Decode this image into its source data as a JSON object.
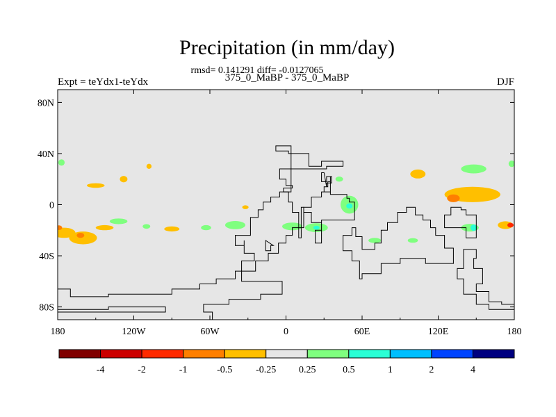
{
  "header": {
    "title": "Precipitation (in mm/day)",
    "stats": "rmsd= 0.141291 diff= -0.0127065",
    "case": "375_0_MaBP - 375_0_MaBP",
    "left_label": "Expt = teYdx1-teYdx",
    "right_label": "DJF"
  },
  "chart_data": {
    "type": "heatmap",
    "title": "Precipitation (in mm/day)",
    "subtitle": "375_0_MaBP - 375_0_MaBP",
    "variable": "precipitation difference",
    "units": "mm/day",
    "season": "DJF",
    "xlabel": "",
    "ylabel": "",
    "xlim": [
      -180,
      180
    ],
    "ylim": [
      -90,
      90
    ],
    "x_ticks": [
      {
        "value": -180,
        "label": "180"
      },
      {
        "value": -120,
        "label": "120W"
      },
      {
        "value": -60,
        "label": "60W"
      },
      {
        "value": 0,
        "label": "0"
      },
      {
        "value": 60,
        "label": "60E"
      },
      {
        "value": 120,
        "label": "120E"
      },
      {
        "value": 180,
        "label": "180"
      }
    ],
    "y_ticks": [
      {
        "value": 80,
        "label": "80N"
      },
      {
        "value": 40,
        "label": "40N"
      },
      {
        "value": 0,
        "label": "0"
      },
      {
        "value": -40,
        "label": "40S"
      },
      {
        "value": -80,
        "label": "80S"
      }
    ],
    "background_color": "#e6e6e6",
    "colorbar": {
      "levels": [
        "-4",
        "-2",
        "-1",
        "-0.5",
        "-0.25",
        "0.25",
        "0.5",
        "1",
        "2",
        "4"
      ],
      "colors": [
        "#800000",
        "#cc0000",
        "#ff2a00",
        "#ff7f00",
        "#ffbf00",
        "#e6e6e6",
        "#7fff7f",
        "#2affd5",
        "#00bfff",
        "#0044ff",
        "#000080"
      ]
    },
    "regions": [
      {
        "name": "South Pacific west",
        "lon": -175,
        "lat": -22,
        "rx": 9,
        "ry": 4,
        "color": "#ffbf00"
      },
      {
        "name": "South Pacific west core",
        "lon": -179,
        "lat": -18,
        "rx": 2.5,
        "ry": 1.8,
        "color": "#ff7f00"
      },
      {
        "name": "South Pacific",
        "lon": -160,
        "lat": -26,
        "rx": 11,
        "ry": 5,
        "color": "#ffbf00"
      },
      {
        "name": "South Pacific core",
        "lon": -162,
        "lat": -24,
        "rx": 3,
        "ry": 2,
        "color": "#ff7f00"
      },
      {
        "name": "South Pacific east",
        "lon": -143,
        "lat": -18,
        "rx": 7,
        "ry": 2,
        "color": "#ffbf00"
      },
      {
        "name": "South Pacific green",
        "lon": -132,
        "lat": -13,
        "rx": 7,
        "ry": 2.2,
        "color": "#7fff7f"
      },
      {
        "name": "South Pacific green 2",
        "lon": -110,
        "lat": -17,
        "rx": 3,
        "ry": 1.8,
        "color": "#7fff7f"
      },
      {
        "name": "South Pacific orange",
        "lon": -90,
        "lat": -19,
        "rx": 6,
        "ry": 2,
        "color": "#ffbf00"
      },
      {
        "name": "East Pacific green",
        "lon": -63,
        "lat": -18,
        "rx": 4,
        "ry": 2,
        "color": "#7fff7f"
      },
      {
        "name": "South America west",
        "lon": -40,
        "lat": -16,
        "rx": 8,
        "ry": 3.2,
        "color": "#7fff7f"
      },
      {
        "name": "Central Pacific 10N",
        "lon": -150,
        "lat": 15,
        "rx": 7,
        "ry": 1.8,
        "color": "#ffbf00"
      },
      {
        "name": "Central Pacific 20N",
        "lon": -128,
        "lat": 20,
        "rx": 3,
        "ry": 2.5,
        "color": "#ffbf00"
      },
      {
        "name": "North Pacific 30N",
        "lon": -108,
        "lat": 30,
        "rx": 2,
        "ry": 2,
        "color": "#ffbf00"
      },
      {
        "name": "Far west 30N",
        "lon": -177,
        "lat": 33,
        "rx": 2.5,
        "ry": 2.5,
        "color": "#7fff7f"
      },
      {
        "name": "Atlantic small",
        "lon": -32,
        "lat": -2,
        "rx": 2.5,
        "ry": 1.5,
        "color": "#ffbf00"
      },
      {
        "name": "Atlantic green 1",
        "lon": 5,
        "lat": -17,
        "rx": 8,
        "ry": 3,
        "color": "#7fff7f"
      },
      {
        "name": "Africa green",
        "lon": 24,
        "lat": -18,
        "rx": 9,
        "ry": 3.5,
        "color": "#7fff7f"
      },
      {
        "name": "Africa cyan",
        "lon": 24,
        "lat": -18,
        "rx": 2.5,
        "ry": 1.5,
        "color": "#2affd5"
      },
      {
        "name": "Arabian Sea",
        "lon": 50,
        "lat": 0,
        "rx": 7,
        "ry": 7,
        "color": "#7fff7f"
      },
      {
        "name": "Arabian Sea core",
        "lon": 50,
        "lat": -1,
        "rx": 2.5,
        "ry": 2,
        "color": "#2affd5"
      },
      {
        "name": "Indian Ocean 20N",
        "lon": 42,
        "lat": 20,
        "rx": 3,
        "ry": 2,
        "color": "#7fff7f"
      },
      {
        "name": "NW Pacific green",
        "lon": 148,
        "lat": 28,
        "rx": 10,
        "ry": 3.5,
        "color": "#7fff7f"
      },
      {
        "name": "NW Pacific orange",
        "lon": 104,
        "lat": 24,
        "rx": 6,
        "ry": 3.5,
        "color": "#ffbf00"
      },
      {
        "name": "West Pacific orange",
        "lon": 147,
        "lat": 8,
        "rx": 22,
        "ry": 6,
        "color": "#ffbf00"
      },
      {
        "name": "West Pacific core",
        "lon": 132,
        "lat": 5,
        "rx": 5,
        "ry": 3,
        "color": "#ff7f00"
      },
      {
        "name": "SW Pacific green",
        "lon": 145,
        "lat": -18,
        "rx": 7,
        "ry": 3,
        "color": "#7fff7f"
      },
      {
        "name": "SW Pacific cyan",
        "lon": 148,
        "lat": -18,
        "rx": 2.5,
        "ry": 2.5,
        "color": "#2affd5"
      },
      {
        "name": "SW Pacific orange",
        "lon": 173,
        "lat": -16,
        "rx": 6,
        "ry": 3,
        "color": "#ffbf00"
      },
      {
        "name": "SW Pacific red",
        "lon": 177,
        "lat": -16,
        "rx": 2.5,
        "ry": 1.8,
        "color": "#ff2a00"
      },
      {
        "name": "Indian Ocean green",
        "lon": 70,
        "lat": -28,
        "rx": 5,
        "ry": 2,
        "color": "#7fff7f"
      },
      {
        "name": "Indian Ocean green 2",
        "lon": 100,
        "lat": -28,
        "rx": 4,
        "ry": 1.8,
        "color": "#7fff7f"
      },
      {
        "name": "NE Pacific green",
        "lon": 178,
        "lat": 32,
        "rx": 2.5,
        "ry": 2.5,
        "color": "#7fff7f"
      }
    ],
    "continents": [
      [
        [
          -33,
          -28
        ],
        [
          -33,
          -32
        ],
        [
          -40,
          -32
        ],
        [
          -40,
          -24
        ],
        [
          -28,
          -24
        ],
        [
          -28,
          -10
        ],
        [
          -22,
          -10
        ],
        [
          -22,
          -4
        ],
        [
          -18,
          -4
        ],
        [
          -18,
          2
        ],
        [
          -12,
          2
        ],
        [
          -12,
          6
        ],
        [
          -5,
          6
        ],
        [
          -5,
          10
        ],
        [
          2,
          10
        ],
        [
          2,
          2
        ],
        [
          5,
          2
        ],
        [
          5,
          -6
        ],
        [
          10,
          -6
        ],
        [
          10,
          -18
        ],
        [
          5,
          -18
        ],
        [
          5,
          -24
        ],
        [
          0,
          -24
        ],
        [
          0,
          -30
        ],
        [
          -6,
          -30
        ],
        [
          -6,
          -38
        ],
        [
          -14,
          -38
        ],
        [
          -14,
          -44
        ],
        [
          -24,
          -44
        ],
        [
          -24,
          -52
        ],
        [
          -40,
          -52
        ],
        [
          -40,
          -58
        ],
        [
          -55,
          -58
        ],
        [
          -55,
          -62
        ],
        [
          -68,
          -62
        ],
        [
          -68,
          -66
        ],
        [
          -90,
          -66
        ],
        [
          -90,
          -70
        ],
        [
          -140,
          -70
        ],
        [
          -140,
          -72
        ],
        [
          -170,
          -72
        ],
        [
          -170,
          -66
        ],
        [
          -180,
          -66
        ],
        [
          -180,
          -82
        ],
        [
          -140,
          -82
        ],
        [
          -140,
          -80
        ],
        [
          -95,
          -80
        ],
        [
          -95,
          -84
        ],
        [
          -180,
          -84
        ],
        [
          -180,
          -90
        ],
        [
          -58,
          -90
        ],
        [
          -58,
          -84
        ],
        [
          -65,
          -84
        ],
        [
          -65,
          -78
        ],
        [
          -45,
          -78
        ],
        [
          -45,
          -74
        ],
        [
          -20,
          -74
        ],
        [
          -20,
          -70
        ],
        [
          -3,
          -70
        ],
        [
          -3,
          -60
        ],
        [
          -35,
          -60
        ],
        [
          -35,
          -44
        ],
        [
          -25,
          -44
        ],
        [
          -25,
          -38
        ],
        [
          -33,
          -38
        ]
      ],
      [
        [
          -5,
          28
        ],
        [
          -5,
          20
        ],
        [
          0,
          20
        ],
        [
          0,
          15
        ],
        [
          5,
          15
        ],
        [
          5,
          13
        ],
        [
          -2,
          13
        ],
        [
          -2,
          10
        ],
        [
          4,
          10
        ],
        [
          4,
          46
        ],
        [
          -8,
          46
        ],
        [
          -8,
          42
        ],
        [
          2,
          42
        ],
        [
          2,
          40
        ],
        [
          18,
          40
        ],
        [
          18,
          30
        ],
        [
          28,
          30
        ],
        [
          28,
          34
        ],
        [
          45,
          34
        ],
        [
          45,
          30
        ],
        [
          32,
          30
        ],
        [
          32,
          28
        ]
      ],
      [
        [
          10,
          -22
        ],
        [
          10,
          -18
        ],
        [
          14,
          -18
        ],
        [
          14,
          -2
        ],
        [
          12,
          -2
        ],
        [
          12,
          -26
        ],
        [
          10,
          -26
        ]
      ],
      [
        [
          35,
          22
        ],
        [
          35,
          18
        ],
        [
          33,
          18
        ],
        [
          33,
          14
        ],
        [
          30,
          14
        ],
        [
          30,
          10
        ],
        [
          35,
          10
        ],
        [
          35,
          8
        ],
        [
          48,
          8
        ],
        [
          48,
          5
        ],
        [
          50,
          5
        ],
        [
          50,
          2
        ],
        [
          54,
          2
        ],
        [
          54,
          -12
        ],
        [
          28,
          -12
        ],
        [
          28,
          -30
        ],
        [
          23,
          -30
        ],
        [
          23,
          -20
        ],
        [
          28,
          -20
        ],
        [
          28,
          -14
        ],
        [
          20,
          -14
        ],
        [
          20,
          -6
        ],
        [
          14,
          -6
        ],
        [
          14,
          -2
        ],
        [
          20,
          -2
        ],
        [
          20,
          6
        ],
        [
          28,
          6
        ],
        [
          28,
          10
        ],
        [
          35,
          10
        ]
      ],
      [
        [
          55,
          -18
        ],
        [
          55,
          -25
        ],
        [
          60,
          -25
        ],
        [
          60,
          -35
        ],
        [
          70,
          -35
        ],
        [
          70,
          -30
        ],
        [
          75,
          -30
        ],
        [
          75,
          -20
        ],
        [
          80,
          -20
        ],
        [
          80,
          -14
        ],
        [
          88,
          -14
        ],
        [
          88,
          -6
        ],
        [
          95,
          -6
        ],
        [
          95,
          -2
        ],
        [
          102,
          -2
        ],
        [
          102,
          -8
        ],
        [
          108,
          -8
        ],
        [
          108,
          -12
        ],
        [
          114,
          -12
        ],
        [
          114,
          -18
        ],
        [
          118,
          -18
        ],
        [
          118,
          -24
        ],
        [
          125,
          -24
        ],
        [
          125,
          -34
        ],
        [
          132,
          -34
        ],
        [
          132,
          -46
        ],
        [
          110,
          -46
        ],
        [
          110,
          -42
        ],
        [
          90,
          -42
        ],
        [
          90,
          -46
        ],
        [
          75,
          -46
        ],
        [
          75,
          -54
        ],
        [
          60,
          -54
        ],
        [
          60,
          -58
        ],
        [
          58,
          -58
        ],
        [
          58,
          -44
        ],
        [
          52,
          -44
        ],
        [
          52,
          -36
        ],
        [
          45,
          -36
        ],
        [
          45,
          -24
        ],
        [
          52,
          -24
        ],
        [
          52,
          -18
        ]
      ],
      [
        [
          130,
          -8
        ],
        [
          125,
          -8
        ],
        [
          125,
          -18
        ],
        [
          142,
          -18
        ],
        [
          142,
          -26
        ],
        [
          150,
          -26
        ],
        [
          150,
          -8
        ],
        [
          142,
          -8
        ],
        [
          142,
          -4
        ],
        [
          138,
          -4
        ],
        [
          138,
          -2
        ],
        [
          130,
          -2
        ]
      ],
      [
        [
          140,
          -35
        ],
        [
          140,
          -50
        ],
        [
          135,
          -50
        ],
        [
          135,
          -58
        ],
        [
          140,
          -58
        ],
        [
          140,
          -70
        ],
        [
          150,
          -70
        ],
        [
          150,
          -78
        ],
        [
          160,
          -78
        ],
        [
          160,
          -82
        ],
        [
          180,
          -82
        ],
        [
          180,
          -78
        ],
        [
          170,
          -78
        ],
        [
          170,
          -76
        ],
        [
          160,
          -76
        ],
        [
          160,
          -68
        ],
        [
          150,
          -68
        ],
        [
          150,
          -62
        ],
        [
          155,
          -62
        ],
        [
          155,
          -50
        ],
        [
          148,
          -50
        ],
        [
          148,
          -42
        ],
        [
          150,
          -42
        ],
        [
          150,
          -35
        ]
      ],
      [
        [
          -16,
          -28
        ],
        [
          -16,
          -36
        ],
        [
          -12,
          -36
        ],
        [
          -12,
          -32
        ],
        [
          -10,
          -32
        ]
      ],
      [
        [
          30,
          25
        ],
        [
          28,
          25
        ],
        [
          28,
          18
        ],
        [
          32,
          18
        ],
        [
          32,
          22
        ],
        [
          36,
          22
        ],
        [
          36,
          17
        ],
        [
          32,
          17
        ],
        [
          32,
          14
        ]
      ]
    ]
  }
}
